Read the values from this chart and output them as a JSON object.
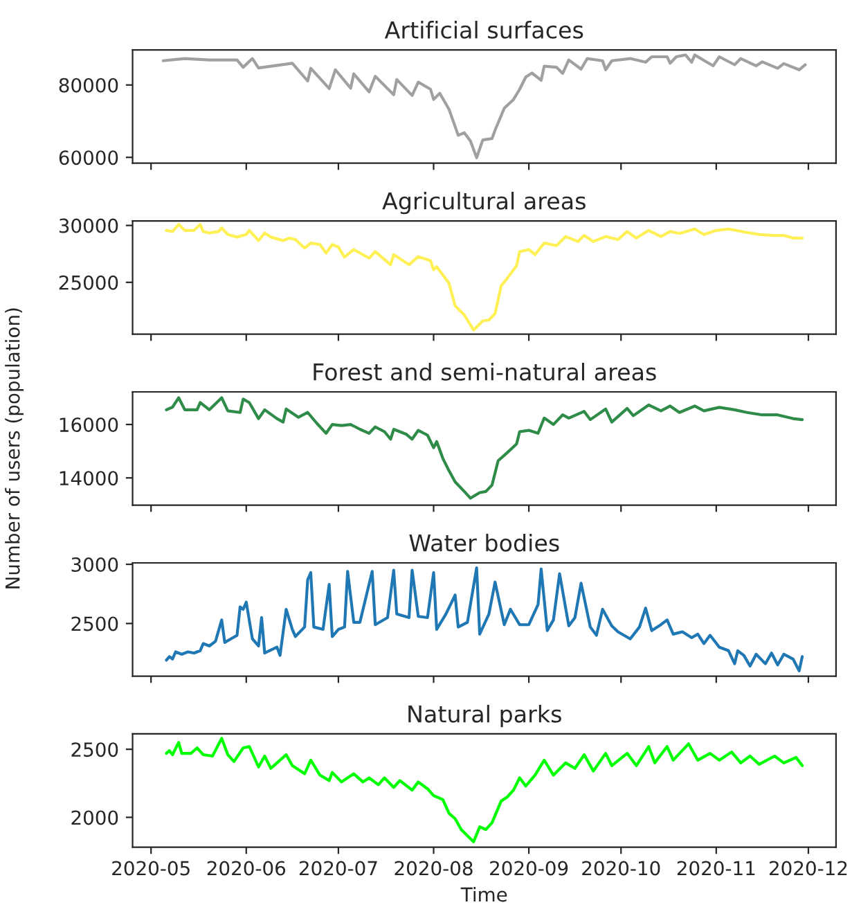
{
  "chart_data": [
    {
      "type": "line",
      "title": "Artificial surfaces",
      "tick_labels": "y",
      "xlim": [
        "2020-04-25",
        "2020-12-10"
      ],
      "ylim": [
        58400,
        89700
      ],
      "yticks": [
        60000,
        80000
      ],
      "xticks": [
        {
          "value": "2020-05-01",
          "label": null
        },
        {
          "value": "2020-06-01",
          "label": null
        },
        {
          "value": "2020-07-01",
          "label": null
        },
        {
          "value": "2020-08-01",
          "label": null
        },
        {
          "value": "2020-09-01",
          "label": null
        },
        {
          "value": "2020-10-01",
          "label": null
        },
        {
          "value": "2020-11-01",
          "label": null
        },
        {
          "value": "2020-12-01",
          "label": null
        }
      ],
      "series": [
        {
          "color": "#a0a0a0",
          "x": [
            "2020-05-05",
            "2020-05-12",
            "2020-05-20",
            "2020-05-29",
            "2020-05-31",
            "2020-06-03",
            "2020-06-05",
            "2020-06-16",
            "2020-06-21",
            "2020-06-22",
            "2020-06-28",
            "2020-06-30",
            "2020-07-05",
            "2020-07-06",
            "2020-07-11",
            "2020-07-13",
            "2020-07-19",
            "2020-07-20",
            "2020-07-25",
            "2020-07-27",
            "2020-07-31",
            "2020-08-01",
            "2020-08-03",
            "2020-08-06",
            "2020-08-09",
            "2020-08-11",
            "2020-08-13",
            "2020-08-15",
            "2020-08-17",
            "2020-08-20",
            "2020-08-21",
            "2020-08-24",
            "2020-08-27",
            "2020-08-29",
            "2020-08-31",
            "2020-09-02",
            "2020-09-05",
            "2020-09-06",
            "2020-09-10",
            "2020-09-12",
            "2020-09-14",
            "2020-09-18",
            "2020-09-20",
            "2020-09-25",
            "2020-09-26",
            "2020-09-28",
            "2020-10-04",
            "2020-10-09",
            "2020-10-11",
            "2020-10-16",
            "2020-10-17",
            "2020-10-19",
            "2020-10-22",
            "2020-10-24",
            "2020-10-25",
            "2020-10-31",
            "2020-11-02",
            "2020-11-07",
            "2020-11-09",
            "2020-11-14",
            "2020-11-16",
            "2020-11-21",
            "2020-11-23",
            "2020-11-28",
            "2020-11-30"
          ],
          "values": [
            86700,
            87300,
            86900,
            86900,
            84900,
            87300,
            84700,
            86000,
            81100,
            84600,
            79000,
            84200,
            79100,
            83100,
            78100,
            82400,
            77300,
            81500,
            77100,
            80800,
            78800,
            76000,
            77700,
            73300,
            66100,
            66800,
            64500,
            59900,
            64800,
            65200,
            67500,
            73600,
            76000,
            78800,
            82200,
            83300,
            81300,
            85200,
            84900,
            83200,
            86900,
            84400,
            87300,
            86700,
            84200,
            86700,
            87300,
            86300,
            87800,
            87800,
            86000,
            87800,
            88300,
            86300,
            88300,
            85300,
            87800,
            85600,
            87300,
            85300,
            86400,
            84600,
            85900,
            84200,
            85600
          ]
        }
      ]
    },
    {
      "type": "line",
      "title": "Agricultural areas",
      "tick_labels": "y",
      "xlim": [
        "2020-04-25",
        "2020-12-10"
      ],
      "ylim": [
        20450,
        30400
      ],
      "yticks": [
        25000,
        30000
      ],
      "xticks": [
        {
          "value": "2020-05-01",
          "label": null
        },
        {
          "value": "2020-06-01",
          "label": null
        },
        {
          "value": "2020-07-01",
          "label": null
        },
        {
          "value": "2020-08-01",
          "label": null
        },
        {
          "value": "2020-09-01",
          "label": null
        },
        {
          "value": "2020-10-01",
          "label": null
        },
        {
          "value": "2020-11-01",
          "label": null
        },
        {
          "value": "2020-12-01",
          "label": null
        }
      ],
      "series": [
        {
          "color": "#fff056",
          "x": [
            "2020-05-06",
            "2020-05-08",
            "2020-05-10",
            "2020-05-12",
            "2020-05-15",
            "2020-05-17",
            "2020-05-18",
            "2020-05-20",
            "2020-05-23",
            "2020-05-24",
            "2020-05-26",
            "2020-05-29",
            "2020-06-01",
            "2020-06-02",
            "2020-06-05",
            "2020-06-07",
            "2020-06-09",
            "2020-06-13",
            "2020-06-15",
            "2020-06-17",
            "2020-06-20",
            "2020-06-22",
            "2020-06-25",
            "2020-06-27",
            "2020-06-29",
            "2020-07-01",
            "2020-07-03",
            "2020-07-06",
            "2020-07-11",
            "2020-07-13",
            "2020-07-18",
            "2020-07-19",
            "2020-07-24",
            "2020-07-27",
            "2020-07-31",
            "2020-08-01",
            "2020-08-02",
            "2020-08-06",
            "2020-08-08",
            "2020-08-11",
            "2020-08-14",
            "2020-08-17",
            "2020-08-19",
            "2020-08-21",
            "2020-08-23",
            "2020-08-25",
            "2020-08-28",
            "2020-08-29",
            "2020-09-01",
            "2020-09-03",
            "2020-09-06",
            "2020-09-10",
            "2020-09-13",
            "2020-09-17",
            "2020-09-19",
            "2020-09-22",
            "2020-09-26",
            "2020-09-30",
            "2020-10-03",
            "2020-10-06",
            "2020-10-10",
            "2020-10-14",
            "2020-10-17",
            "2020-10-20",
            "2020-10-25",
            "2020-10-28",
            "2020-11-01",
            "2020-11-05",
            "2020-11-10",
            "2020-11-15",
            "2020-11-20",
            "2020-11-23",
            "2020-11-26",
            "2020-11-29"
          ],
          "values": [
            29560,
            29470,
            30090,
            29560,
            29560,
            30090,
            29470,
            29340,
            29470,
            29780,
            29200,
            28980,
            29200,
            29560,
            28670,
            29340,
            28980,
            28670,
            28890,
            28760,
            28010,
            28450,
            28320,
            27570,
            28320,
            28100,
            27220,
            27880,
            27130,
            27700,
            26550,
            27440,
            26550,
            27260,
            26900,
            26110,
            26370,
            24920,
            22930,
            22130,
            20810,
            21610,
            21690,
            22260,
            24700,
            25360,
            26460,
            27700,
            27880,
            27440,
            28450,
            28230,
            29030,
            28580,
            29120,
            28580,
            29030,
            28760,
            29470,
            28890,
            29560,
            29030,
            29470,
            29290,
            29690,
            29200,
            29560,
            29690,
            29430,
            29200,
            29120,
            29120,
            28890,
            28890
          ]
        }
      ]
    },
    {
      "type": "line",
      "title": "Forest and semi-natural areas",
      "ylabel": "Number of users (population)",
      "tick_labels": "y",
      "xlim": [
        "2020-04-25",
        "2020-12-10"
      ],
      "ylim": [
        12980,
        17220
      ],
      "yticks": [
        14000,
        16000
      ],
      "xticks": [
        {
          "value": "2020-05-01",
          "label": null
        },
        {
          "value": "2020-06-01",
          "label": null
        },
        {
          "value": "2020-07-01",
          "label": null
        },
        {
          "value": "2020-08-01",
          "label": null
        },
        {
          "value": "2020-09-01",
          "label": null
        },
        {
          "value": "2020-10-01",
          "label": null
        },
        {
          "value": "2020-11-01",
          "label": null
        },
        {
          "value": "2020-12-01",
          "label": null
        }
      ],
      "series": [
        {
          "color": "#2e8b48",
          "x": [
            "2020-05-06",
            "2020-05-08",
            "2020-05-10",
            "2020-05-12",
            "2020-05-16",
            "2020-05-17",
            "2020-05-20",
            "2020-05-24",
            "2020-05-26",
            "2020-05-30",
            "2020-05-31",
            "2020-06-02",
            "2020-06-05",
            "2020-06-07",
            "2020-06-11",
            "2020-06-13",
            "2020-06-14",
            "2020-06-18",
            "2020-06-21",
            "2020-06-24",
            "2020-06-27",
            "2020-06-29",
            "2020-07-02",
            "2020-07-05",
            "2020-07-08",
            "2020-07-11",
            "2020-07-13",
            "2020-07-16",
            "2020-07-18",
            "2020-07-19",
            "2020-07-23",
            "2020-07-25",
            "2020-07-27",
            "2020-07-30",
            "2020-08-01",
            "2020-08-02",
            "2020-08-04",
            "2020-08-06",
            "2020-08-08",
            "2020-08-11",
            "2020-08-13",
            "2020-08-16",
            "2020-08-18",
            "2020-08-20",
            "2020-08-22",
            "2020-08-25",
            "2020-08-28",
            "2020-08-29",
            "2020-09-01",
            "2020-09-04",
            "2020-09-06",
            "2020-09-09",
            "2020-09-12",
            "2020-09-14",
            "2020-09-19",
            "2020-09-21",
            "2020-09-26",
            "2020-09-28",
            "2020-10-03",
            "2020-10-05",
            "2020-10-10",
            "2020-10-14",
            "2020-10-17",
            "2020-10-20",
            "2020-10-25",
            "2020-10-28",
            "2020-11-02",
            "2020-11-07",
            "2020-11-11",
            "2020-11-16",
            "2020-11-21",
            "2020-11-26",
            "2020-11-29"
          ],
          "values": [
            16550,
            16650,
            17000,
            16550,
            16550,
            16820,
            16550,
            17000,
            16510,
            16450,
            16950,
            16820,
            16220,
            16550,
            16220,
            16090,
            16580,
            16270,
            16450,
            16040,
            15670,
            16000,
            15960,
            16000,
            15820,
            15670,
            15910,
            15730,
            15450,
            15820,
            15640,
            15450,
            15780,
            15600,
            15130,
            15360,
            14730,
            14270,
            13850,
            13490,
            13240,
            13450,
            13490,
            13730,
            14640,
            14950,
            15270,
            15730,
            15780,
            15670,
            16240,
            16000,
            16360,
            16240,
            16490,
            16180,
            16580,
            16090,
            16600,
            16330,
            16730,
            16510,
            16690,
            16450,
            16690,
            16510,
            16640,
            16550,
            16450,
            16360,
            16360,
            16220,
            16180
          ]
        }
      ]
    },
    {
      "type": "line",
      "title": "Water bodies",
      "tick_labels": "y",
      "xlim": [
        "2020-04-25",
        "2020-12-10"
      ],
      "ylim": [
        2055,
        3012
      ],
      "yticks": [
        2500,
        3000
      ],
      "xticks": [
        {
          "value": "2020-05-01",
          "label": null
        },
        {
          "value": "2020-06-01",
          "label": null
        },
        {
          "value": "2020-07-01",
          "label": null
        },
        {
          "value": "2020-08-01",
          "label": null
        },
        {
          "value": "2020-09-01",
          "label": null
        },
        {
          "value": "2020-10-01",
          "label": null
        },
        {
          "value": "2020-11-01",
          "label": null
        },
        {
          "value": "2020-12-01",
          "label": null
        }
      ],
      "series": [
        {
          "color": "#1f77b4",
          "x": [
            "2020-05-06",
            "2020-05-07",
            "2020-05-08",
            "2020-05-09",
            "2020-05-11",
            "2020-05-13",
            "2020-05-15",
            "2020-05-17",
            "2020-05-18",
            "2020-05-20",
            "2020-05-22",
            "2020-05-24",
            "2020-05-25",
            "2020-05-27",
            "2020-05-29",
            "2020-05-30",
            "2020-05-31",
            "2020-06-01",
            "2020-06-03",
            "2020-06-05",
            "2020-06-06",
            "2020-06-07",
            "2020-06-11",
            "2020-06-12",
            "2020-06-14",
            "2020-06-16",
            "2020-06-17",
            "2020-06-20",
            "2020-06-21",
            "2020-06-22",
            "2020-06-23",
            "2020-06-26",
            "2020-06-28",
            "2020-06-29",
            "2020-07-01",
            "2020-07-03",
            "2020-07-04",
            "2020-07-06",
            "2020-07-08",
            "2020-07-12",
            "2020-07-13",
            "2020-07-17",
            "2020-07-19",
            "2020-07-20",
            "2020-07-24",
            "2020-07-25",
            "2020-07-27",
            "2020-07-30",
            "2020-08-01",
            "2020-08-02",
            "2020-08-05",
            "2020-08-08",
            "2020-08-09",
            "2020-08-12",
            "2020-08-15",
            "2020-08-16",
            "2020-08-19",
            "2020-08-21",
            "2020-08-24",
            "2020-08-26",
            "2020-08-29",
            "2020-09-01",
            "2020-09-04",
            "2020-09-05",
            "2020-09-07",
            "2020-09-09",
            "2020-09-11",
            "2020-09-14",
            "2020-09-16",
            "2020-09-18",
            "2020-09-21",
            "2020-09-23",
            "2020-09-25",
            "2020-09-28",
            "2020-09-30",
            "2020-10-04",
            "2020-10-07",
            "2020-10-09",
            "2020-10-11",
            "2020-10-14",
            "2020-10-16",
            "2020-10-18",
            "2020-10-21",
            "2020-10-24",
            "2020-10-26",
            "2020-10-28",
            "2020-10-30",
            "2020-11-02",
            "2020-11-05",
            "2020-11-07",
            "2020-11-08",
            "2020-11-10",
            "2020-11-12",
            "2020-11-14",
            "2020-11-17",
            "2020-11-19",
            "2020-11-21",
            "2020-11-23",
            "2020-11-26",
            "2020-11-28",
            "2020-11-29"
          ],
          "values": [
            2190,
            2220,
            2200,
            2260,
            2240,
            2260,
            2250,
            2270,
            2330,
            2310,
            2350,
            2530,
            2340,
            2370,
            2400,
            2640,
            2620,
            2680,
            2370,
            2310,
            2550,
            2250,
            2300,
            2230,
            2620,
            2450,
            2390,
            2470,
            2870,
            2930,
            2470,
            2450,
            2830,
            2390,
            2450,
            2470,
            2940,
            2510,
            2510,
            2940,
            2490,
            2550,
            2950,
            2580,
            2550,
            2950,
            2560,
            2550,
            2930,
            2450,
            2580,
            2740,
            2470,
            2510,
            2970,
            2410,
            2580,
            2850,
            2490,
            2620,
            2490,
            2490,
            2660,
            2960,
            2440,
            2530,
            2920,
            2480,
            2550,
            2840,
            2470,
            2400,
            2620,
            2480,
            2430,
            2370,
            2470,
            2630,
            2440,
            2490,
            2530,
            2410,
            2430,
            2380,
            2410,
            2330,
            2400,
            2300,
            2270,
            2160,
            2270,
            2230,
            2140,
            2240,
            2160,
            2250,
            2150,
            2240,
            2200,
            2100,
            2220
          ]
        }
      ]
    },
    {
      "type": "line",
      "title": "Natural parks",
      "xlabel": "Time",
      "xlim": [
        "2020-04-25",
        "2020-12-10"
      ],
      "ylim": [
        1781,
        2613
      ],
      "yticks": [
        2000,
        2500
      ],
      "xticks": [
        {
          "value": "2020-05-01",
          "label": "2020-05"
        },
        {
          "value": "2020-06-01",
          "label": "2020-06"
        },
        {
          "value": "2020-07-01",
          "label": "2020-07"
        },
        {
          "value": "2020-08-01",
          "label": "2020-08"
        },
        {
          "value": "2020-09-01",
          "label": "2020-09"
        },
        {
          "value": "2020-10-01",
          "label": "2020-10"
        },
        {
          "value": "2020-11-01",
          "label": "2020-11"
        },
        {
          "value": "2020-12-01",
          "label": "2020-12"
        }
      ],
      "series": [
        {
          "color": "#00ff00",
          "x": [
            "2020-05-06",
            "2020-05-07",
            "2020-05-08",
            "2020-05-10",
            "2020-05-11",
            "2020-05-14",
            "2020-05-16",
            "2020-05-18",
            "2020-05-21",
            "2020-05-24",
            "2020-05-26",
            "2020-05-28",
            "2020-05-31",
            "2020-06-02",
            "2020-06-05",
            "2020-06-07",
            "2020-06-09",
            "2020-06-11",
            "2020-06-14",
            "2020-06-16",
            "2020-06-20",
            "2020-06-22",
            "2020-06-25",
            "2020-06-28",
            "2020-06-29",
            "2020-07-02",
            "2020-07-06",
            "2020-07-09",
            "2020-07-11",
            "2020-07-14",
            "2020-07-16",
            "2020-07-19",
            "2020-07-21",
            "2020-07-25",
            "2020-07-27",
            "2020-07-30",
            "2020-08-01",
            "2020-08-04",
            "2020-08-06",
            "2020-08-08",
            "2020-08-10",
            "2020-08-14",
            "2020-08-16",
            "2020-08-18",
            "2020-08-20",
            "2020-08-23",
            "2020-08-25",
            "2020-08-27",
            "2020-08-29",
            "2020-08-31",
            "2020-09-03",
            "2020-09-06",
            "2020-09-09",
            "2020-09-13",
            "2020-09-16",
            "2020-09-19",
            "2020-09-22",
            "2020-09-26",
            "2020-09-28",
            "2020-10-03",
            "2020-10-06",
            "2020-10-10",
            "2020-10-12",
            "2020-10-16",
            "2020-10-18",
            "2020-10-23",
            "2020-10-26",
            "2020-10-30",
            "2020-11-02",
            "2020-11-06",
            "2020-11-09",
            "2020-11-12",
            "2020-11-15",
            "2020-11-20",
            "2020-11-23",
            "2020-11-27",
            "2020-11-29"
          ],
          "values": [
            2470,
            2490,
            2460,
            2550,
            2470,
            2470,
            2510,
            2460,
            2450,
            2580,
            2460,
            2410,
            2510,
            2520,
            2370,
            2450,
            2360,
            2400,
            2460,
            2380,
            2320,
            2420,
            2310,
            2270,
            2330,
            2260,
            2320,
            2260,
            2290,
            2240,
            2290,
            2220,
            2270,
            2200,
            2260,
            2210,
            2160,
            2130,
            2030,
            1990,
            1910,
            1820,
            1930,
            1910,
            1960,
            2120,
            2150,
            2200,
            2290,
            2230,
            2310,
            2420,
            2310,
            2400,
            2360,
            2460,
            2340,
            2470,
            2380,
            2470,
            2380,
            2520,
            2400,
            2520,
            2420,
            2540,
            2420,
            2470,
            2420,
            2480,
            2400,
            2450,
            2390,
            2450,
            2400,
            2440,
            2380
          ]
        }
      ]
    }
  ]
}
